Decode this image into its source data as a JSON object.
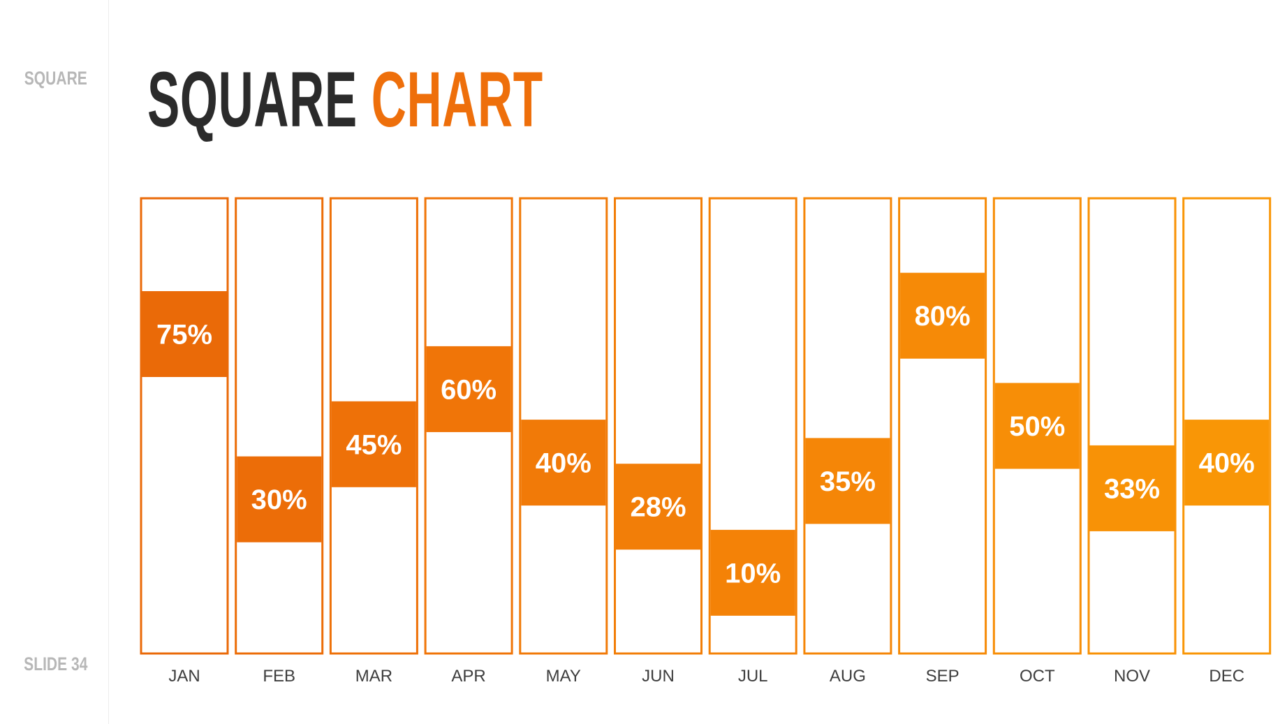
{
  "sidebar": {
    "section_label": "SQUARE",
    "slide_label": "SLIDE 34"
  },
  "title": {
    "dark": "SQUARE",
    "accent": "CHART"
  },
  "chart_data": {
    "type": "bar",
    "categories": [
      "JAN",
      "FEB",
      "MAR",
      "APR",
      "MAY",
      "JUN",
      "JUL",
      "AUG",
      "SEP",
      "OCT",
      "NOV",
      "DEC"
    ],
    "values": [
      75,
      30,
      45,
      60,
      40,
      28,
      10,
      35,
      80,
      50,
      33,
      40
    ],
    "value_labels": [
      "75%",
      "30%",
      "45%",
      "60%",
      "40%",
      "28%",
      "10%",
      "35%",
      "80%",
      "50%",
      "33%",
      "40%"
    ],
    "ylim": [
      0,
      100
    ],
    "unit": "%",
    "colors": [
      "#ea6a08",
      "#ec6d08",
      "#ee7108",
      "#f07508",
      "#f17a08",
      "#f27e08",
      "#f48207",
      "#f58607",
      "#f68a07",
      "#f78e07",
      "#f89206",
      "#f99606"
    ]
  }
}
